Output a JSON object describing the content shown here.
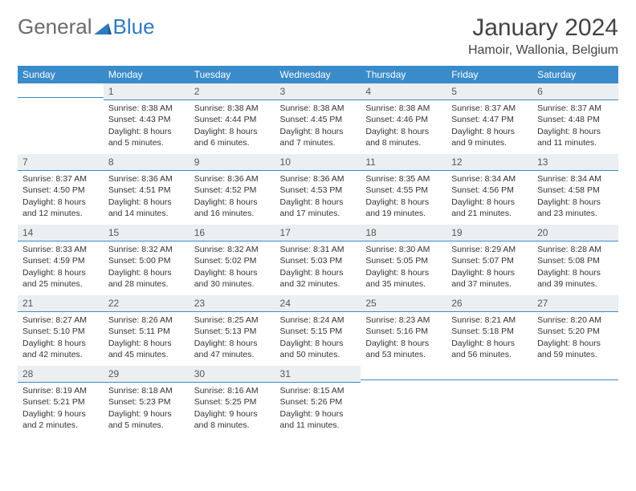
{
  "logo": {
    "text1": "General",
    "text2": "Blue"
  },
  "title": "January 2024",
  "location": "Hamoir, Wallonia, Belgium",
  "colors": {
    "header_bg": "#3a8bc9",
    "header_text": "#ffffff",
    "daynum_bg": "#eceff1",
    "divider": "#3a8bc9",
    "logo_gray": "#6b6b6b",
    "logo_blue": "#2f7bbf"
  },
  "weekdays": [
    "Sunday",
    "Monday",
    "Tuesday",
    "Wednesday",
    "Thursday",
    "Friday",
    "Saturday"
  ],
  "first_weekday_index": 1,
  "days": [
    {
      "n": 1,
      "sunrise": "8:38 AM",
      "sunset": "4:43 PM",
      "daylight": "8 hours and 5 minutes."
    },
    {
      "n": 2,
      "sunrise": "8:38 AM",
      "sunset": "4:44 PM",
      "daylight": "8 hours and 6 minutes."
    },
    {
      "n": 3,
      "sunrise": "8:38 AM",
      "sunset": "4:45 PM",
      "daylight": "8 hours and 7 minutes."
    },
    {
      "n": 4,
      "sunrise": "8:38 AM",
      "sunset": "4:46 PM",
      "daylight": "8 hours and 8 minutes."
    },
    {
      "n": 5,
      "sunrise": "8:37 AM",
      "sunset": "4:47 PM",
      "daylight": "8 hours and 9 minutes."
    },
    {
      "n": 6,
      "sunrise": "8:37 AM",
      "sunset": "4:48 PM",
      "daylight": "8 hours and 11 minutes."
    },
    {
      "n": 7,
      "sunrise": "8:37 AM",
      "sunset": "4:50 PM",
      "daylight": "8 hours and 12 minutes."
    },
    {
      "n": 8,
      "sunrise": "8:36 AM",
      "sunset": "4:51 PM",
      "daylight": "8 hours and 14 minutes."
    },
    {
      "n": 9,
      "sunrise": "8:36 AM",
      "sunset": "4:52 PM",
      "daylight": "8 hours and 16 minutes."
    },
    {
      "n": 10,
      "sunrise": "8:36 AM",
      "sunset": "4:53 PM",
      "daylight": "8 hours and 17 minutes."
    },
    {
      "n": 11,
      "sunrise": "8:35 AM",
      "sunset": "4:55 PM",
      "daylight": "8 hours and 19 minutes."
    },
    {
      "n": 12,
      "sunrise": "8:34 AM",
      "sunset": "4:56 PM",
      "daylight": "8 hours and 21 minutes."
    },
    {
      "n": 13,
      "sunrise": "8:34 AM",
      "sunset": "4:58 PM",
      "daylight": "8 hours and 23 minutes."
    },
    {
      "n": 14,
      "sunrise": "8:33 AM",
      "sunset": "4:59 PM",
      "daylight": "8 hours and 25 minutes."
    },
    {
      "n": 15,
      "sunrise": "8:32 AM",
      "sunset": "5:00 PM",
      "daylight": "8 hours and 28 minutes."
    },
    {
      "n": 16,
      "sunrise": "8:32 AM",
      "sunset": "5:02 PM",
      "daylight": "8 hours and 30 minutes."
    },
    {
      "n": 17,
      "sunrise": "8:31 AM",
      "sunset": "5:03 PM",
      "daylight": "8 hours and 32 minutes."
    },
    {
      "n": 18,
      "sunrise": "8:30 AM",
      "sunset": "5:05 PM",
      "daylight": "8 hours and 35 minutes."
    },
    {
      "n": 19,
      "sunrise": "8:29 AM",
      "sunset": "5:07 PM",
      "daylight": "8 hours and 37 minutes."
    },
    {
      "n": 20,
      "sunrise": "8:28 AM",
      "sunset": "5:08 PM",
      "daylight": "8 hours and 39 minutes."
    },
    {
      "n": 21,
      "sunrise": "8:27 AM",
      "sunset": "5:10 PM",
      "daylight": "8 hours and 42 minutes."
    },
    {
      "n": 22,
      "sunrise": "8:26 AM",
      "sunset": "5:11 PM",
      "daylight": "8 hours and 45 minutes."
    },
    {
      "n": 23,
      "sunrise": "8:25 AM",
      "sunset": "5:13 PM",
      "daylight": "8 hours and 47 minutes."
    },
    {
      "n": 24,
      "sunrise": "8:24 AM",
      "sunset": "5:15 PM",
      "daylight": "8 hours and 50 minutes."
    },
    {
      "n": 25,
      "sunrise": "8:23 AM",
      "sunset": "5:16 PM",
      "daylight": "8 hours and 53 minutes."
    },
    {
      "n": 26,
      "sunrise": "8:21 AM",
      "sunset": "5:18 PM",
      "daylight": "8 hours and 56 minutes."
    },
    {
      "n": 27,
      "sunrise": "8:20 AM",
      "sunset": "5:20 PM",
      "daylight": "8 hours and 59 minutes."
    },
    {
      "n": 28,
      "sunrise": "8:19 AM",
      "sunset": "5:21 PM",
      "daylight": "9 hours and 2 minutes."
    },
    {
      "n": 29,
      "sunrise": "8:18 AM",
      "sunset": "5:23 PM",
      "daylight": "9 hours and 5 minutes."
    },
    {
      "n": 30,
      "sunrise": "8:16 AM",
      "sunset": "5:25 PM",
      "daylight": "9 hours and 8 minutes."
    },
    {
      "n": 31,
      "sunrise": "8:15 AM",
      "sunset": "5:26 PM",
      "daylight": "9 hours and 11 minutes."
    }
  ],
  "labels": {
    "sunrise": "Sunrise:",
    "sunset": "Sunset:",
    "daylight": "Daylight:"
  }
}
